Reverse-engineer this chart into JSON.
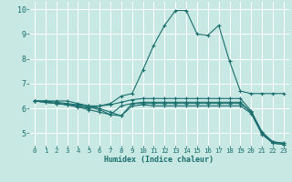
{
  "xlabel": "Humidex (Indice chaleur)",
  "xlim": [
    -0.5,
    23.5
  ],
  "ylim": [
    4.5,
    10.3
  ],
  "yticks": [
    5,
    6,
    7,
    8,
    9,
    10
  ],
  "xticks": [
    0,
    1,
    2,
    3,
    4,
    5,
    6,
    7,
    8,
    9,
    10,
    11,
    12,
    13,
    14,
    15,
    16,
    17,
    18,
    19,
    20,
    21,
    22,
    23
  ],
  "background_color": "#c8e8e4",
  "grid_color": "#ffffff",
  "line_color": "#1a6e6e",
  "lines": [
    {
      "x": [
        0,
        1,
        2,
        3,
        4,
        5,
        6,
        7,
        8,
        9,
        10,
        11,
        12,
        13,
        14,
        15,
        16,
        17,
        18,
        19,
        20,
        21,
        22,
        23
      ],
      "y": [
        6.3,
        6.3,
        6.3,
        6.3,
        6.2,
        6.1,
        6.1,
        6.2,
        6.5,
        6.6,
        7.55,
        8.55,
        9.35,
        9.95,
        9.95,
        9.0,
        8.95,
        9.35,
        7.9,
        6.7,
        6.6,
        6.6,
        6.6,
        6.6
      ]
    },
    {
      "x": [
        0,
        1,
        2,
        3,
        4,
        5,
        6,
        7,
        8,
        9,
        10,
        11,
        12,
        13,
        14,
        15,
        16,
        17,
        18,
        19,
        20,
        21,
        22,
        23
      ],
      "y": [
        6.3,
        6.3,
        6.25,
        6.2,
        6.15,
        6.1,
        6.0,
        5.85,
        5.7,
        6.2,
        6.2,
        6.2,
        6.2,
        6.2,
        6.2,
        6.2,
        6.2,
        6.2,
        6.2,
        6.2,
        5.85,
        5.0,
        4.65,
        4.6
      ]
    },
    {
      "x": [
        0,
        1,
        2,
        3,
        4,
        5,
        6,
        7,
        8,
        9,
        10,
        11,
        12,
        13,
        14,
        15,
        16,
        17,
        18,
        19,
        20,
        21,
        22,
        23
      ],
      "y": [
        6.3,
        6.25,
        6.2,
        6.15,
        6.1,
        6.05,
        5.95,
        5.75,
        5.7,
        6.1,
        6.15,
        6.1,
        6.1,
        6.1,
        6.1,
        6.1,
        6.1,
        6.1,
        6.1,
        6.1,
        5.8,
        4.95,
        4.6,
        4.55
      ]
    },
    {
      "x": [
        0,
        1,
        2,
        3,
        4,
        5,
        6,
        7,
        8,
        9,
        10,
        11,
        12,
        13,
        14,
        15,
        16,
        17,
        18,
        19,
        20,
        21,
        22,
        23
      ],
      "y": [
        6.3,
        6.25,
        6.2,
        6.15,
        6.05,
        5.95,
        5.85,
        5.75,
        6.1,
        6.2,
        6.25,
        6.25,
        6.25,
        6.25,
        6.25,
        6.25,
        6.25,
        6.25,
        6.25,
        6.25,
        5.85,
        5.0,
        4.6,
        4.55
      ]
    },
    {
      "x": [
        0,
        1,
        2,
        3,
        4,
        5,
        6,
        7,
        8,
        9,
        10,
        11,
        12,
        13,
        14,
        15,
        16,
        17,
        18,
        19,
        20,
        21,
        22,
        23
      ],
      "y": [
        6.3,
        6.25,
        6.2,
        6.15,
        6.1,
        6.0,
        6.1,
        6.15,
        6.25,
        6.35,
        6.4,
        6.4,
        6.4,
        6.4,
        6.4,
        6.4,
        6.4,
        6.4,
        6.4,
        6.4,
        5.9,
        5.05,
        4.65,
        4.6
      ]
    }
  ]
}
